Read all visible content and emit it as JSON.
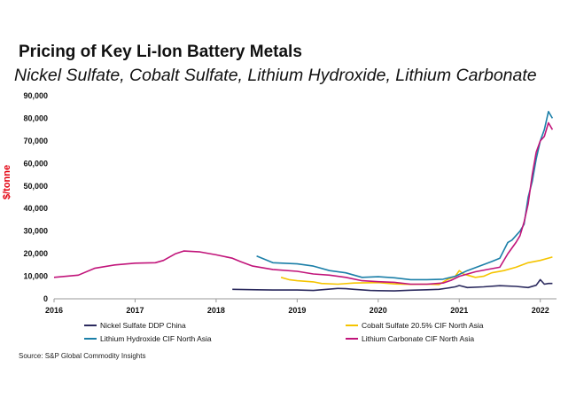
{
  "title": "Pricing of Key Li-Ion Battery Metals",
  "subtitle": "Nickel Sulfate, Cobalt Sulfate, Lithium Hydroxide, Lithium Carbonate",
  "source": "Source: S&P Global Commodity Insights",
  "chart_data": {
    "type": "line",
    "title": "Pricing of Key Li-Ion Battery Metals",
    "subtitle": "Nickel Sulfate, Cobalt Sulfate, Lithium Hydroxide, Lithium Carbonate",
    "xlabel": "",
    "ylabel": "$/tonne",
    "xlim": [
      2016,
      2022.2
    ],
    "ylim": [
      0,
      90000
    ],
    "x_ticks": [
      2016,
      2017,
      2018,
      2019,
      2020,
      2021,
      2022
    ],
    "x_tick_labels": [
      "2016",
      "2017",
      "2018",
      "2019",
      "2020",
      "2021",
      "2022"
    ],
    "y_ticks": [
      0,
      10000,
      20000,
      30000,
      40000,
      50000,
      60000,
      70000,
      80000,
      90000
    ],
    "y_tick_labels": [
      "0",
      "10,000",
      "20,000",
      "30,000",
      "40,000",
      "50,000",
      "60,000",
      "70,000",
      "80,000",
      "90,000"
    ],
    "grid": false,
    "legend_position": "bottom",
    "series": [
      {
        "name": "Nickel Sulfate DDP China",
        "color": "#2b2a5e",
        "x": [
          2018.2,
          2018.5,
          2018.7,
          2019.0,
          2019.2,
          2019.4,
          2019.5,
          2019.6,
          2019.7,
          2019.9,
          2020.0,
          2020.2,
          2020.4,
          2020.6,
          2020.75,
          2020.85,
          2020.95,
          2021.0,
          2021.1,
          2021.3,
          2021.5,
          2021.7,
          2021.85,
          2021.95,
          2022.0,
          2022.05,
          2022.1,
          2022.15
        ],
        "values": [
          4200,
          4000,
          3900,
          3900,
          3700,
          4300,
          4600,
          4500,
          4200,
          3700,
          3600,
          3500,
          3800,
          4000,
          4200,
          4700,
          5300,
          5900,
          5000,
          5300,
          5800,
          5500,
          5000,
          6000,
          8500,
          6500,
          6800,
          6800
        ]
      },
      {
        "name": "Cobalt Sulfate 20.5% CIF North Asia",
        "color": "#f5c400",
        "x": [
          2018.8,
          2018.9,
          2019.0,
          2019.2,
          2019.3,
          2019.5,
          2019.7,
          2020.0,
          2020.2,
          2020.4,
          2020.6,
          2020.75,
          2020.85,
          2020.95,
          2021.0,
          2021.05,
          2021.1,
          2021.2,
          2021.3,
          2021.4,
          2021.55,
          2021.7,
          2021.85,
          2022.0,
          2022.15
        ],
        "values": [
          9500,
          8500,
          8000,
          7500,
          6800,
          6500,
          7000,
          7200,
          6600,
          6400,
          6500,
          6300,
          8500,
          10000,
          12500,
          11000,
          10500,
          9500,
          10000,
          11500,
          12500,
          14000,
          16000,
          17000,
          18500
        ]
      },
      {
        "name": "Lithium Hydroxide CIF North Asia",
        "color": "#1b7fa8",
        "x": [
          2018.5,
          2018.6,
          2018.7,
          2019.0,
          2019.2,
          2019.4,
          2019.6,
          2019.8,
          2020.0,
          2020.2,
          2020.4,
          2020.6,
          2020.8,
          2020.95,
          2021.1,
          2021.25,
          2021.4,
          2021.5,
          2021.6,
          2021.65,
          2021.75,
          2021.8,
          2021.85,
          2021.9,
          2021.95,
          2022.0,
          2022.05,
          2022.1,
          2022.15
        ],
        "values": [
          19000,
          17500,
          16000,
          15500,
          14500,
          12500,
          11500,
          9500,
          9800,
          9300,
          8500,
          8500,
          8700,
          10000,
          12500,
          14500,
          16500,
          18000,
          25000,
          26000,
          30000,
          33000,
          45000,
          52000,
          62000,
          70000,
          75000,
          83000,
          80000
        ]
      },
      {
        "name": "Lithium Carbonate CIF North Asia",
        "color": "#c1147a",
        "x": [
          2016.0,
          2016.3,
          2016.5,
          2016.75,
          2017.0,
          2017.25,
          2017.35,
          2017.5,
          2017.6,
          2017.8,
          2018.0,
          2018.2,
          2018.3,
          2018.45,
          2018.7,
          2019.0,
          2019.2,
          2019.4,
          2019.6,
          2019.8,
          2020.0,
          2020.2,
          2020.4,
          2020.6,
          2020.8,
          2020.9,
          2021.0,
          2021.2,
          2021.35,
          2021.5,
          2021.6,
          2021.7,
          2021.75,
          2021.8,
          2021.85,
          2021.9,
          2021.95,
          2022.0,
          2022.05,
          2022.1,
          2022.15
        ],
        "values": [
          9500,
          10500,
          13500,
          15000,
          15800,
          16000,
          17000,
          20000,
          21200,
          20800,
          19500,
          18000,
          16500,
          14500,
          13000,
          12200,
          11000,
          10500,
          9500,
          8000,
          7600,
          7300,
          6500,
          6500,
          7000,
          8200,
          10000,
          12000,
          13000,
          14000,
          20000,
          25000,
          28000,
          34000,
          42000,
          55000,
          65000,
          70000,
          72000,
          78000,
          75000
        ]
      }
    ]
  }
}
